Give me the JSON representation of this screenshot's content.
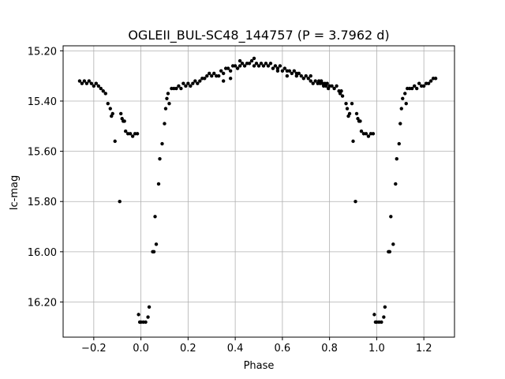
{
  "chart_data": {
    "type": "scatter",
    "title": "OGLEII_BUL-SC48_144757 (P = 3.7962 d)",
    "xlabel": "Phase",
    "ylabel": "Ic-mag",
    "xlim": [
      -0.33,
      1.33
    ],
    "ylim": [
      16.34,
      15.18
    ],
    "y_inverted": true,
    "grid": true,
    "x_ticks": [
      "−0.2",
      "0.0",
      "0.2",
      "0.4",
      "0.6",
      "0.8",
      "1.0",
      "1.2"
    ],
    "x_tick_values": [
      -0.2,
      0.0,
      0.2,
      0.4,
      0.6,
      0.8,
      1.0,
      1.2
    ],
    "y_ticks": [
      "15.20",
      "15.40",
      "15.60",
      "15.80",
      "16.00",
      "16.20"
    ],
    "y_tick_values": [
      15.2,
      15.4,
      15.6,
      15.8,
      16.0,
      16.2
    ],
    "marker_color": "#000000",
    "points": [
      [
        0.74,
        15.32
      ],
      [
        0.75,
        15.33
      ],
      [
        0.755,
        15.32
      ],
      [
        0.76,
        15.33
      ],
      [
        0.765,
        15.32
      ],
      [
        0.77,
        15.33
      ],
      [
        0.775,
        15.34
      ],
      [
        0.78,
        15.33
      ],
      [
        0.785,
        15.34
      ],
      [
        0.79,
        15.33
      ],
      [
        0.795,
        15.35
      ],
      [
        0.8,
        15.34
      ],
      [
        0.81,
        15.34
      ],
      [
        0.82,
        15.35
      ],
      [
        0.83,
        15.34
      ],
      [
        0.84,
        15.36
      ],
      [
        0.845,
        15.37
      ],
      [
        0.85,
        15.36
      ],
      [
        0.855,
        15.38
      ],
      [
        0.87,
        15.41
      ],
      [
        0.875,
        15.43
      ],
      [
        0.88,
        15.46
      ],
      [
        0.885,
        15.45
      ],
      [
        0.895,
        15.41
      ],
      [
        0.9,
        15.56
      ],
      [
        0.91,
        15.8
      ],
      [
        0.915,
        15.45
      ],
      [
        0.92,
        15.47
      ],
      [
        0.925,
        15.48
      ],
      [
        0.93,
        15.48
      ],
      [
        0.935,
        15.52
      ],
      [
        0.945,
        15.53
      ],
      [
        0.955,
        15.53
      ],
      [
        0.965,
        15.54
      ],
      [
        0.975,
        15.53
      ],
      [
        0.985,
        15.53
      ],
      [
        0.99,
        16.25
      ],
      [
        0.995,
        16.28
      ],
      [
        1.0,
        16.28
      ],
      [
        1.01,
        16.28
      ],
      [
        1.02,
        16.28
      ],
      [
        1.03,
        16.26
      ],
      [
        1.035,
        16.22
      ],
      [
        1.05,
        16.0
      ],
      [
        1.055,
        16.0
      ],
      [
        1.06,
        15.86
      ],
      [
        1.07,
        15.97
      ],
      [
        1.08,
        15.73
      ],
      [
        1.085,
        15.63
      ],
      [
        1.095,
        15.57
      ],
      [
        1.1,
        15.49
      ],
      [
        1.105,
        15.43
      ],
      [
        1.11,
        15.39
      ],
      [
        1.12,
        15.37
      ],
      [
        1.125,
        15.41
      ],
      [
        1.13,
        15.35
      ],
      [
        1.14,
        15.35
      ],
      [
        1.15,
        15.35
      ],
      [
        1.16,
        15.34
      ],
      [
        1.17,
        15.35
      ],
      [
        1.18,
        15.33
      ],
      [
        1.19,
        15.34
      ],
      [
        1.2,
        15.34
      ],
      [
        1.21,
        15.33
      ],
      [
        1.22,
        15.33
      ],
      [
        1.23,
        15.32
      ],
      [
        1.24,
        15.31
      ],
      [
        1.25,
        15.31
      ],
      [
        0.2,
        15.33
      ],
      [
        0.21,
        15.34
      ],
      [
        0.22,
        15.33
      ],
      [
        0.23,
        15.32
      ],
      [
        0.24,
        15.33
      ],
      [
        0.25,
        15.32
      ],
      [
        0.26,
        15.31
      ],
      [
        0.27,
        15.31
      ],
      [
        0.28,
        15.3
      ],
      [
        0.29,
        15.29
      ],
      [
        0.3,
        15.3
      ],
      [
        0.31,
        15.29
      ],
      [
        0.32,
        15.3
      ],
      [
        0.33,
        15.3
      ],
      [
        0.34,
        15.28
      ],
      [
        0.35,
        15.29
      ],
      [
        0.36,
        15.27
      ],
      [
        0.37,
        15.27
      ],
      [
        0.38,
        15.28
      ],
      [
        0.39,
        15.26
      ],
      [
        0.4,
        15.26
      ],
      [
        0.41,
        15.27
      ],
      [
        0.42,
        15.26
      ],
      [
        0.43,
        15.25
      ],
      [
        0.44,
        15.26
      ],
      [
        0.45,
        15.25
      ],
      [
        0.46,
        15.25
      ],
      [
        0.47,
        15.24
      ],
      [
        0.48,
        15.26
      ],
      [
        0.49,
        15.25
      ],
      [
        0.5,
        15.26
      ],
      [
        0.51,
        15.25
      ],
      [
        0.52,
        15.26
      ],
      [
        0.53,
        15.25
      ],
      [
        0.54,
        15.26
      ],
      [
        0.55,
        15.25
      ],
      [
        0.56,
        15.27
      ],
      [
        0.57,
        15.26
      ],
      [
        0.58,
        15.27
      ],
      [
        0.59,
        15.26
      ],
      [
        0.6,
        15.28
      ],
      [
        0.61,
        15.27
      ],
      [
        0.62,
        15.28
      ],
      [
        0.63,
        15.28
      ],
      [
        0.64,
        15.29
      ],
      [
        0.65,
        15.28
      ],
      [
        0.66,
        15.3
      ],
      [
        0.67,
        15.29
      ],
      [
        0.68,
        15.3
      ],
      [
        0.69,
        15.31
      ],
      [
        0.7,
        15.3
      ],
      [
        0.71,
        15.31
      ],
      [
        0.72,
        15.32
      ],
      [
        0.73,
        15.33
      ],
      [
        0.35,
        15.32
      ],
      [
        0.38,
        15.31
      ],
      [
        0.42,
        15.24
      ],
      [
        0.48,
        15.23
      ],
      [
        0.58,
        15.28
      ],
      [
        0.62,
        15.3
      ],
      [
        0.66,
        15.29
      ],
      [
        0.72,
        15.3
      ],
      [
        -0.26,
        15.32
      ],
      [
        -0.25,
        15.33
      ],
      [
        -0.24,
        15.32
      ],
      [
        -0.23,
        15.33
      ],
      [
        -0.22,
        15.32
      ],
      [
        -0.21,
        15.33
      ],
      [
        -0.2,
        15.34
      ],
      [
        -0.19,
        15.33
      ],
      [
        -0.18,
        15.34
      ],
      [
        -0.17,
        15.35
      ],
      [
        -0.16,
        15.36
      ],
      [
        -0.15,
        15.37
      ],
      [
        -0.14,
        15.41
      ],
      [
        -0.13,
        15.43
      ],
      [
        -0.125,
        15.46
      ],
      [
        -0.12,
        15.45
      ],
      [
        -0.11,
        15.56
      ],
      [
        -0.09,
        15.8
      ],
      [
        -0.085,
        15.45
      ],
      [
        -0.08,
        15.47
      ],
      [
        -0.075,
        15.48
      ],
      [
        -0.07,
        15.48
      ],
      [
        -0.065,
        15.52
      ],
      [
        -0.055,
        15.53
      ],
      [
        -0.045,
        15.53
      ],
      [
        -0.035,
        15.54
      ],
      [
        -0.025,
        15.53
      ],
      [
        -0.015,
        15.53
      ],
      [
        -0.01,
        16.25
      ],
      [
        -0.005,
        16.28
      ],
      [
        0.0,
        16.28
      ],
      [
        0.01,
        16.28
      ],
      [
        0.02,
        16.28
      ],
      [
        0.03,
        16.26
      ],
      [
        0.035,
        16.22
      ],
      [
        0.05,
        16.0
      ],
      [
        0.055,
        16.0
      ],
      [
        0.06,
        15.86
      ],
      [
        0.065,
        15.97
      ],
      [
        0.075,
        15.73
      ],
      [
        0.08,
        15.63
      ],
      [
        0.09,
        15.57
      ],
      [
        0.1,
        15.49
      ],
      [
        0.105,
        15.43
      ],
      [
        0.11,
        15.39
      ],
      [
        0.115,
        15.37
      ],
      [
        0.12,
        15.41
      ],
      [
        0.13,
        15.35
      ],
      [
        0.14,
        15.35
      ],
      [
        0.15,
        15.35
      ],
      [
        0.16,
        15.34
      ],
      [
        0.17,
        15.35
      ],
      [
        0.18,
        15.33
      ],
      [
        0.19,
        15.34
      ]
    ]
  }
}
